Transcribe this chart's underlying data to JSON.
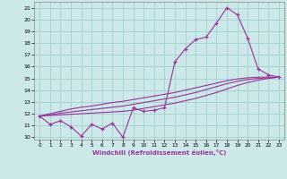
{
  "xlabel": "Windchill (Refroidissement éolien,°C)",
  "x_hours": [
    0,
    1,
    2,
    3,
    4,
    5,
    6,
    7,
    8,
    9,
    10,
    11,
    12,
    13,
    14,
    15,
    16,
    17,
    18,
    19,
    20,
    21,
    22,
    23
  ],
  "y_jagged": [
    11.8,
    11.1,
    11.4,
    10.9,
    10.1,
    11.1,
    10.7,
    11.2,
    10.0,
    12.5,
    12.2,
    12.3,
    12.5,
    16.4,
    17.5,
    18.3,
    18.5,
    19.7,
    21.0,
    20.4,
    18.4,
    15.8,
    15.3,
    15.1
  ],
  "y_line1": [
    11.8,
    11.85,
    11.9,
    11.95,
    12.0,
    12.05,
    12.1,
    12.15,
    12.2,
    12.3,
    12.45,
    12.6,
    12.75,
    12.9,
    13.1,
    13.3,
    13.55,
    13.8,
    14.1,
    14.4,
    14.65,
    14.85,
    15.0,
    15.1
  ],
  "y_line2": [
    11.8,
    11.9,
    12.05,
    12.15,
    12.25,
    12.35,
    12.45,
    12.55,
    12.65,
    12.8,
    12.95,
    13.1,
    13.25,
    13.4,
    13.6,
    13.8,
    14.05,
    14.3,
    14.55,
    14.75,
    14.9,
    15.0,
    15.05,
    15.1
  ],
  "y_line3": [
    11.8,
    12.0,
    12.2,
    12.4,
    12.55,
    12.65,
    12.8,
    12.95,
    13.05,
    13.2,
    13.35,
    13.5,
    13.65,
    13.8,
    14.0,
    14.2,
    14.4,
    14.6,
    14.8,
    14.95,
    15.05,
    15.1,
    15.1,
    15.1
  ],
  "line_color": "#993399",
  "bg_color": "#cce8e8",
  "grid_color": "#99cccc",
  "ylim": [
    9.8,
    21.5
  ],
  "xlim": [
    -0.5,
    23.5
  ],
  "yticks": [
    10,
    11,
    12,
    13,
    14,
    15,
    16,
    17,
    18,
    19,
    20,
    21
  ],
  "xticks": [
    0,
    1,
    2,
    3,
    4,
    5,
    6,
    7,
    8,
    9,
    10,
    11,
    12,
    13,
    14,
    15,
    16,
    17,
    18,
    19,
    20,
    21,
    22,
    23
  ]
}
